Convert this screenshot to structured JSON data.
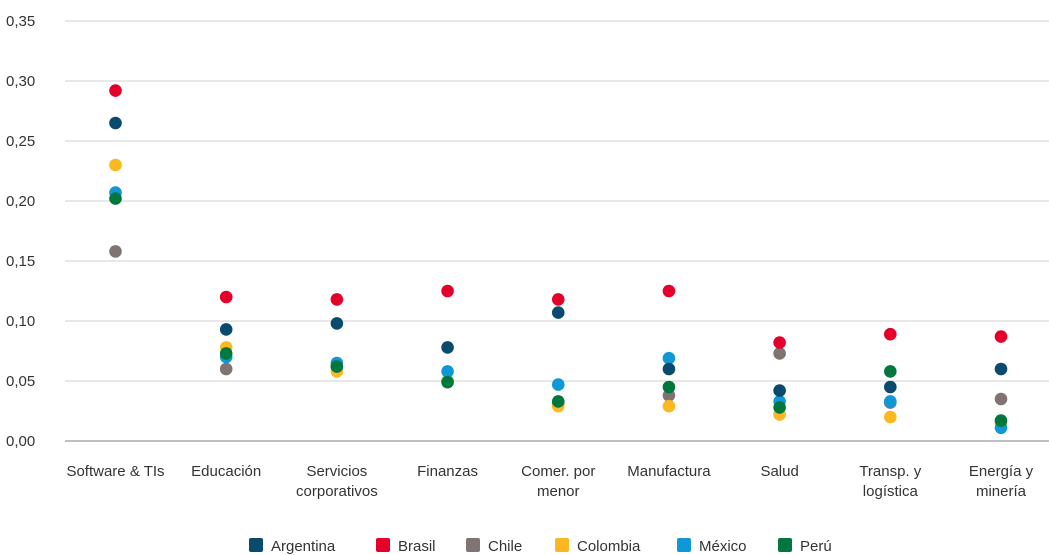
{
  "chart_data": {
    "type": "scatter",
    "categories": [
      [
        "Software & TIs"
      ],
      [
        "Educación"
      ],
      [
        "Servicios",
        "corporativos"
      ],
      [
        "Finanzas"
      ],
      [
        "Comer. por",
        "menor"
      ],
      [
        "Manufactura"
      ],
      [
        "Salud"
      ],
      [
        "Transp. y",
        "logística"
      ],
      [
        "Energía y",
        "minería"
      ]
    ],
    "ylim": [
      0,
      0.35
    ],
    "yticks": [
      "0,00",
      "0,05",
      "0,10",
      "0,15",
      "0,20",
      "0,25",
      "0,30",
      "0,35"
    ],
    "grid": true,
    "legend_position": "bottom",
    "series": [
      {
        "name": "Argentina",
        "color": "#0b4a6f",
        "values": [
          0.265,
          0.093,
          0.098,
          0.078,
          0.107,
          0.06,
          0.042,
          0.045,
          0.06
        ]
      },
      {
        "name": "Brasil",
        "color": "#e4002b",
        "values": [
          0.292,
          0.12,
          0.118,
          0.125,
          0.118,
          0.125,
          0.082,
          0.089,
          0.087
        ]
      },
      {
        "name": "Chile",
        "color": "#7f7471",
        "values": [
          0.158,
          0.06,
          0.062,
          0.05,
          0.032,
          0.038,
          0.073,
          0.032,
          0.035
        ]
      },
      {
        "name": "Colombia",
        "color": "#fbb820",
        "values": [
          0.23,
          0.078,
          0.058,
          0.05,
          0.029,
          0.029,
          0.022,
          0.02,
          0.015
        ]
      },
      {
        "name": "México",
        "color": "#0f97d6",
        "values": [
          0.207,
          0.07,
          0.065,
          0.058,
          0.047,
          0.069,
          0.033,
          0.033,
          0.011
        ]
      },
      {
        "name": "Perú",
        "color": "#00783d",
        "values": [
          0.202,
          0.073,
          0.062,
          0.049,
          0.033,
          0.045,
          0.028,
          0.058,
          0.017
        ]
      }
    ]
  }
}
